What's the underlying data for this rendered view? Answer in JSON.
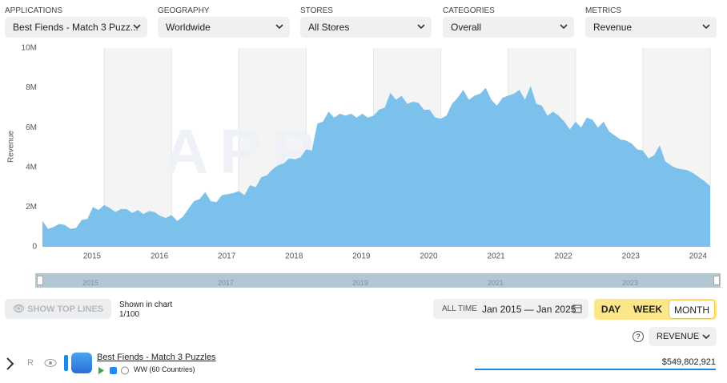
{
  "filters": [
    {
      "label": "APPLICATIONS",
      "value": "Best Fiends - Match 3 Puzz..."
    },
    {
      "label": "GEOGRAPHY",
      "value": "Worldwide"
    },
    {
      "label": "STORES",
      "value": "All Stores"
    },
    {
      "label": "CATEGORIES",
      "value": "Overall"
    },
    {
      "label": "METRICS",
      "value": "Revenue"
    }
  ],
  "chart_data": {
    "type": "area",
    "ylabel": "Revenue",
    "watermark": "APPMAGIC",
    "color": "#7cc1ec",
    "x": [
      "2014-02",
      "2014-03",
      "2014-04",
      "2014-05",
      "2014-06",
      "2014-07",
      "2014-08",
      "2014-09",
      "2014-10",
      "2014-11",
      "2014-12",
      "2015-01",
      "2015-02",
      "2015-03",
      "2015-04",
      "2015-05",
      "2015-06",
      "2015-07",
      "2015-08",
      "2015-09",
      "2015-10",
      "2015-11",
      "2015-12",
      "2016-01",
      "2016-02",
      "2016-03",
      "2016-04",
      "2016-05",
      "2016-06",
      "2016-07",
      "2016-08",
      "2016-09",
      "2016-10",
      "2016-11",
      "2016-12",
      "2017-01",
      "2017-02",
      "2017-03",
      "2017-04",
      "2017-05",
      "2017-06",
      "2017-07",
      "2017-08",
      "2017-09",
      "2017-10",
      "2017-11",
      "2017-12",
      "2018-01",
      "2018-02",
      "2018-03",
      "2018-04",
      "2018-05",
      "2018-06",
      "2018-07",
      "2018-08",
      "2018-09",
      "2018-10",
      "2018-11",
      "2018-12",
      "2019-01",
      "2019-02",
      "2019-03",
      "2019-04",
      "2019-05",
      "2019-06",
      "2019-07",
      "2019-08",
      "2019-09",
      "2019-10",
      "2019-11",
      "2019-12",
      "2020-01",
      "2020-02",
      "2020-03",
      "2020-04",
      "2020-05",
      "2020-06",
      "2020-07",
      "2020-08",
      "2020-09",
      "2020-10",
      "2020-11",
      "2020-12",
      "2021-01",
      "2021-02",
      "2021-03",
      "2021-04",
      "2021-05",
      "2021-06",
      "2021-07",
      "2021-08",
      "2021-09",
      "2021-10",
      "2021-11",
      "2021-12",
      "2022-01",
      "2022-02",
      "2022-03",
      "2022-04",
      "2022-05",
      "2022-06",
      "2022-07",
      "2022-08",
      "2022-09",
      "2022-10",
      "2022-11",
      "2022-12",
      "2023-01",
      "2023-02",
      "2023-03",
      "2023-04",
      "2023-05",
      "2023-06",
      "2023-07",
      "2023-08",
      "2023-09",
      "2023-10",
      "2023-11",
      "2023-12",
      "2024-01"
    ],
    "values": [
      1300000,
      900000,
      1000000,
      1150000,
      1100000,
      900000,
      950000,
      1350000,
      1400000,
      2000000,
      1850000,
      2100000,
      1950000,
      1750000,
      1900000,
      1900000,
      1700000,
      1850000,
      1650000,
      1800000,
      1750000,
      1550000,
      1450000,
      1600000,
      1300000,
      1500000,
      1900000,
      2300000,
      2400000,
      2750000,
      2300000,
      2250000,
      2600000,
      2650000,
      2700000,
      2800000,
      2600000,
      3100000,
      3000000,
      3500000,
      3600000,
      3900000,
      4100000,
      4200000,
      4450000,
      4400000,
      4500000,
      4900000,
      4850000,
      6200000,
      6300000,
      6800000,
      6500000,
      6700000,
      6600000,
      6700000,
      6500000,
      6700000,
      6500000,
      6600000,
      6900000,
      7000000,
      7750000,
      7400000,
      7600000,
      7200000,
      7300000,
      7250000,
      6900000,
      6900000,
      6500000,
      6450000,
      6600000,
      7200000,
      7500000,
      7900000,
      7400000,
      7600000,
      7700000,
      8000000,
      7400000,
      7100000,
      7500000,
      7600000,
      7700000,
      7900000,
      7400000,
      8100000,
      7200000,
      7100000,
      6600000,
      6800000,
      6600000,
      6300000,
      5900000,
      6300000,
      6000000,
      6500000,
      6400000,
      6000000,
      6300000,
      5800000,
      5600000,
      5400000,
      5350000,
      5200000,
      4900000,
      4850000,
      4450000,
      4600000,
      5100000,
      4300000,
      4100000,
      3950000,
      3900000,
      3850000,
      3700000,
      3500000,
      3300000,
      3050000
    ],
    "xlim": [
      "2014-02",
      "2024-01"
    ],
    "xticks": [
      {
        "value": "2015-01",
        "label": "2015"
      },
      {
        "value": "2016-01",
        "label": "2016"
      },
      {
        "value": "2017-01",
        "label": "2017"
      },
      {
        "value": "2018-01",
        "label": "2018"
      },
      {
        "value": "2019-01",
        "label": "2019"
      },
      {
        "value": "2020-01",
        "label": "2020"
      },
      {
        "value": "2021-01",
        "label": "2021"
      },
      {
        "value": "2022-01",
        "label": "2022"
      },
      {
        "value": "2023-01",
        "label": "2023"
      },
      {
        "value": "2024-01",
        "label": "2024"
      }
    ],
    "ylim": [
      0,
      10000000
    ],
    "yticks": [
      0,
      {
        "value": 2000000,
        "label": "2M"
      },
      {
        "value": 4000000,
        "label": "4M"
      },
      {
        "value": 6000000,
        "label": "6M"
      },
      {
        "value": 8000000,
        "label": "8M"
      },
      {
        "value": 10000000,
        "label": "10M"
      }
    ]
  },
  "navigator": {
    "labels": [
      "2015",
      "2017",
      "2019",
      "2021",
      "2023"
    ]
  },
  "controls": {
    "show_top_lines": "SHOW TOP LINES",
    "shown_in_chart": "Shown in chart",
    "shown_count": "1/100",
    "range_mode": "ALL TIME",
    "range": "Jan 2015 — Jan 2025",
    "granularity": [
      "DAY",
      "WEEK",
      "MONTH"
    ],
    "help": "?",
    "metric": "REVENUE"
  },
  "rows": [
    {
      "rank": "R",
      "name": "Best Fiends - Match 3 Puzzles",
      "region": "WW (60 Countries)",
      "total": "$549,802,921"
    }
  ]
}
